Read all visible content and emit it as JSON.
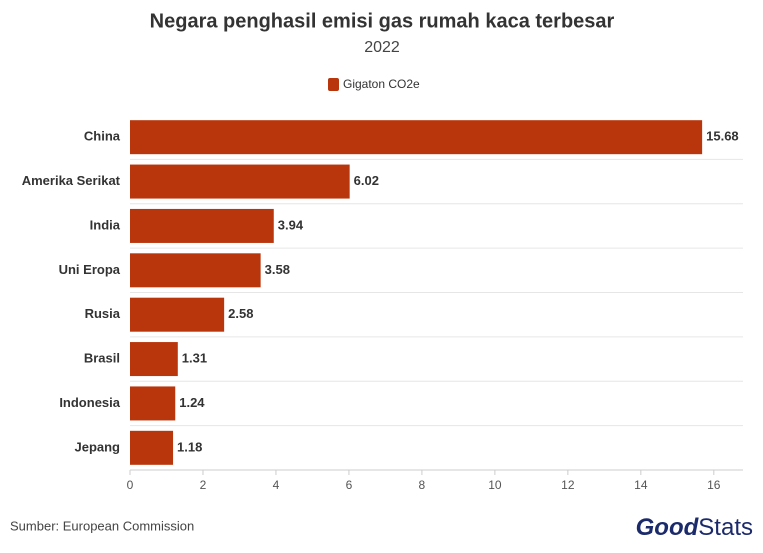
{
  "chart_data": {
    "type": "bar",
    "orientation": "horizontal",
    "title": "Negara penghasil emisi gas rumah kaca terbesar",
    "subtitle": "2022",
    "categories": [
      "China",
      "Amerika Serikat",
      "India",
      "Uni Eropa",
      "Rusia",
      "Brasil",
      "Indonesia",
      "Jepang"
    ],
    "series": [
      {
        "name": "Gigaton CO2e",
        "color": "#b9360d",
        "values": [
          15.68,
          6.02,
          3.94,
          3.58,
          2.58,
          1.31,
          1.24,
          1.18
        ]
      }
    ],
    "xlim": [
      0,
      16.8
    ],
    "xticks": [
      0,
      2,
      4,
      6,
      8,
      10,
      12,
      14,
      16
    ],
    "grid": false,
    "legend": "top"
  },
  "footer": {
    "source": "Sumber: European Commission",
    "logo": [
      "Good",
      "Stats"
    ]
  }
}
